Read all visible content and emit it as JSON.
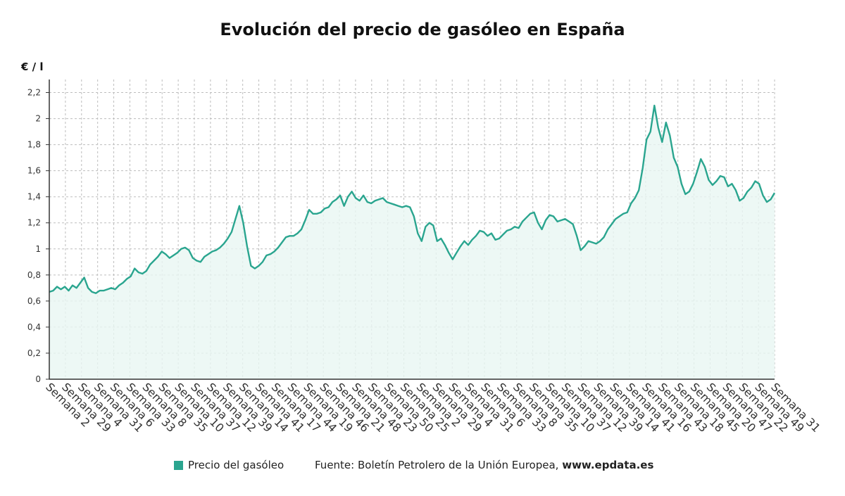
{
  "colors": {
    "series": "#2aa58f",
    "fill": "#e8f6f3",
    "grid": "#bdbdbd",
    "axis": "#333333"
  },
  "legend": {
    "label": "Precio del gasóleo",
    "swatch_color": "#2aa58f"
  },
  "source": {
    "text": "Fuente: Boletín Petrolero de la Unión Europea, ",
    "site": "www.epdata.es"
  },
  "chart_data": {
    "type": "area",
    "title": "Evolución del precio de gasóleo en España",
    "ylabel": "€ / l",
    "xlabel": "",
    "ylim": [
      0,
      2.3
    ],
    "yticks": [
      0,
      0.2,
      0.4,
      0.6,
      0.8,
      1,
      1.2,
      1.4,
      1.6,
      1.8,
      2,
      2.2
    ],
    "ytick_labels": [
      "0",
      "0,2",
      "0,4",
      "0,6",
      "0,8",
      "1",
      "1,2",
      "1,4",
      "1,6",
      "1,8",
      "2",
      "2,2"
    ],
    "grid": true,
    "legend_position": "bottom",
    "xtick_labels": [
      "Semana 2",
      "Semana 29",
      "Semana 4",
      "Semana 31",
      "Semana 6",
      "Semana 33",
      "Semana 8",
      "Semana 35",
      "Semana 10",
      "Semana 37",
      "Semana 12",
      "Semana 39",
      "Semana 14",
      "Semana 41",
      "Semana 17",
      "Semana 44",
      "Semana 19",
      "Semana 46",
      "Semana 21",
      "Semana 48",
      "Semana 23",
      "Semana 50",
      "Semana 25",
      "Semana 2",
      "Semana 29",
      "Semana 4",
      "Semana 31",
      "Semana 6",
      "Semana 33",
      "Semana 8",
      "Semana 35",
      "Semana 10",
      "Semana 37",
      "Semana 12",
      "Semana 39",
      "Semana 14",
      "Semana 41",
      "Semana 16",
      "Semana 43",
      "Semana 18",
      "Semana 45",
      "Semana 20",
      "Semana 47",
      "Semana 22",
      "Semana 49",
      "Semana 31"
    ],
    "series": [
      {
        "name": "Precio del gasóleo",
        "values": [
          0.67,
          0.68,
          0.71,
          0.69,
          0.71,
          0.68,
          0.72,
          0.7,
          0.74,
          0.78,
          0.7,
          0.67,
          0.66,
          0.68,
          0.68,
          0.69,
          0.7,
          0.69,
          0.72,
          0.74,
          0.77,
          0.79,
          0.85,
          0.82,
          0.81,
          0.83,
          0.88,
          0.91,
          0.94,
          0.98,
          0.96,
          0.93,
          0.95,
          0.97,
          1.0,
          1.01,
          0.99,
          0.93,
          0.91,
          0.9,
          0.94,
          0.96,
          0.98,
          0.99,
          1.01,
          1.04,
          1.08,
          1.13,
          1.23,
          1.33,
          1.2,
          1.02,
          0.87,
          0.85,
          0.87,
          0.9,
          0.95,
          0.96,
          0.98,
          1.01,
          1.05,
          1.09,
          1.1,
          1.1,
          1.12,
          1.15,
          1.22,
          1.3,
          1.27,
          1.27,
          1.28,
          1.31,
          1.32,
          1.36,
          1.38,
          1.41,
          1.33,
          1.4,
          1.44,
          1.39,
          1.37,
          1.41,
          1.36,
          1.35,
          1.37,
          1.38,
          1.39,
          1.36,
          1.35,
          1.34,
          1.33,
          1.32,
          1.33,
          1.32,
          1.25,
          1.12,
          1.06,
          1.17,
          1.2,
          1.18,
          1.06,
          1.08,
          1.03,
          0.97,
          0.92,
          0.97,
          1.02,
          1.06,
          1.03,
          1.07,
          1.1,
          1.14,
          1.13,
          1.1,
          1.12,
          1.07,
          1.08,
          1.11,
          1.14,
          1.15,
          1.17,
          1.16,
          1.21,
          1.24,
          1.27,
          1.28,
          1.2,
          1.15,
          1.22,
          1.26,
          1.25,
          1.21,
          1.22,
          1.23,
          1.21,
          1.19,
          1.1,
          0.99,
          1.02,
          1.06,
          1.05,
          1.04,
          1.06,
          1.09,
          1.15,
          1.19,
          1.23,
          1.25,
          1.27,
          1.28,
          1.35,
          1.39,
          1.45,
          1.62,
          1.84,
          1.9,
          2.1,
          1.93,
          1.82,
          1.97,
          1.87,
          1.7,
          1.63,
          1.5,
          1.42,
          1.44,
          1.5,
          1.59,
          1.69,
          1.63,
          1.53,
          1.49,
          1.52,
          1.56,
          1.55,
          1.48,
          1.5,
          1.45,
          1.37,
          1.39,
          1.44,
          1.47,
          1.52,
          1.5,
          1.41,
          1.36,
          1.38,
          1.43
        ]
      }
    ]
  }
}
